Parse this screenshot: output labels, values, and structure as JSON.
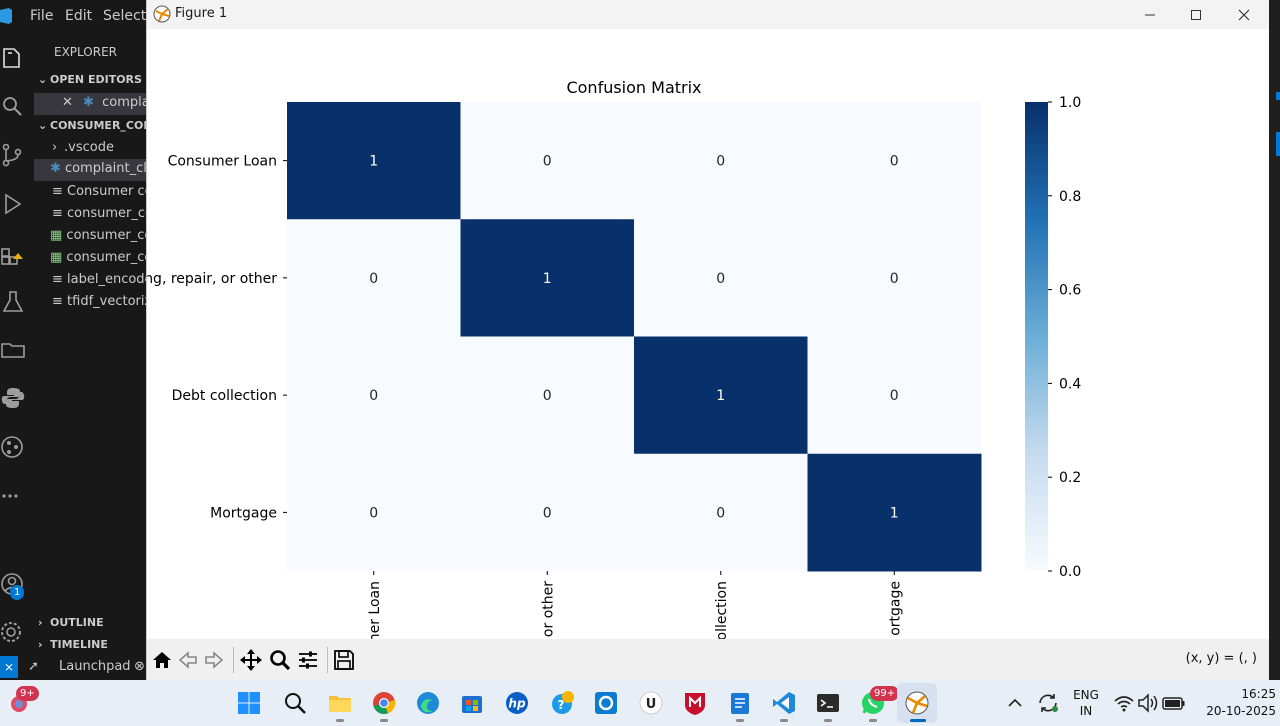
{
  "vscode": {
    "menu": [
      "File",
      "Edit",
      "Selectio"
    ],
    "explorer_title": "EXPLORER",
    "open_editors_label": "OPEN EDITORS",
    "open_editor_file": "complai",
    "workspace_label": "CONSUMER_COM",
    "files": [
      ".vscode",
      "complaint_cla",
      "Consumer co",
      "consumer_co",
      "consumer_co",
      "consumer_co",
      "label_encode",
      "tfidf_vectoriz"
    ],
    "outline_label": "OUTLINE",
    "timeline_label": "TIMELINE",
    "statusbar_launchpad": "Launchpad",
    "accounts_badge": "1"
  },
  "figure": {
    "window_title": "Figure 1",
    "coords_readout": "(x, y) = (, )"
  },
  "chart_data": {
    "type": "heatmap",
    "title": "Confusion Matrix",
    "row_labels": [
      "Consumer Loan",
      "ng, repair, or other",
      "Debt collection",
      "Mortgage"
    ],
    "col_labels": [
      "ner Loan",
      "or other",
      "ollection",
      "ortgage"
    ],
    "values": [
      [
        1,
        0,
        0,
        0
      ],
      [
        0,
        1,
        0,
        0
      ],
      [
        0,
        0,
        1,
        0
      ],
      [
        0,
        0,
        0,
        1
      ]
    ],
    "colormap": "Blues",
    "colorbar_ticks": [
      "0.0",
      "0.2",
      "0.4",
      "0.6",
      "0.8",
      "1.0"
    ],
    "vmin": 0,
    "vmax": 1,
    "high_color": "#08306b",
    "low_color": "#f7fbff"
  },
  "taskbar": {
    "weather_badge": "9+",
    "whatsapp_badge": "99+",
    "language_top": "ENG",
    "language_bottom": "IN",
    "time": "16:25",
    "date": "20-10-2025"
  },
  "colors": {
    "vscode_bg": "#1f1f1f",
    "accent": "#0078d4",
    "taskbar_bg": "#e8eef6"
  }
}
